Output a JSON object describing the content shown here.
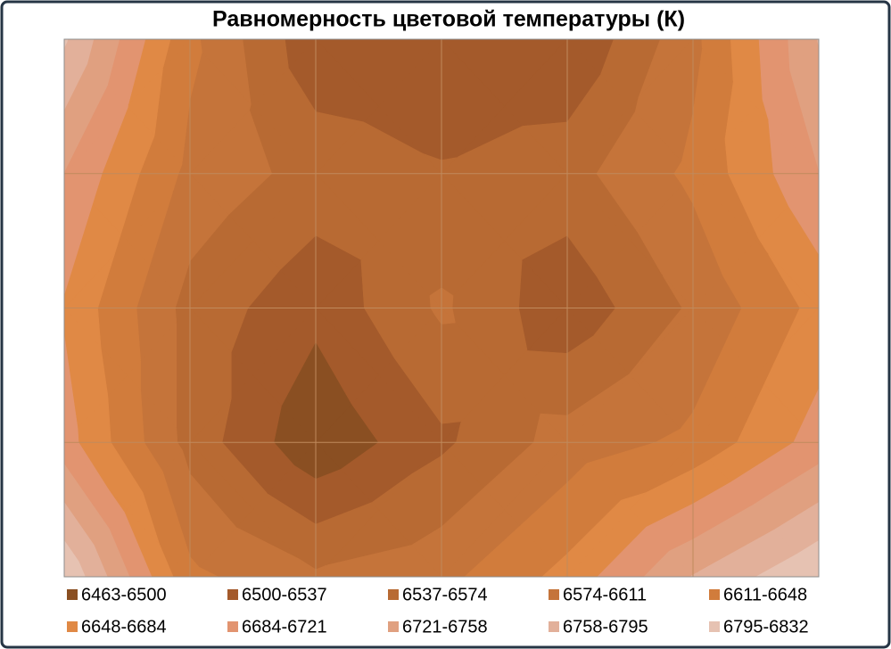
{
  "chart_data": {
    "type": "contour",
    "title": "Равномерность цветовой температуры (К)",
    "z": [
      [
        6800,
        6620,
        6510,
        6510,
        6500,
        6600,
        6760
      ],
      [
        6720,
        6600,
        6560,
        6540,
        6560,
        6620,
        6720
      ],
      [
        6680,
        6560,
        6510,
        6580,
        6510,
        6580,
        6660
      ],
      [
        6700,
        6560,
        6470,
        6530,
        6590,
        6620,
        6700
      ],
      [
        6830,
        6620,
        6580,
        6600,
        6660,
        6760,
        6830
      ]
    ],
    "levels": [
      6463,
      6500,
      6537,
      6574,
      6611,
      6648,
      6684,
      6721,
      6758,
      6795,
      6832
    ],
    "bands": [
      {
        "name": "6463-6500",
        "color": "#8a4f22"
      },
      {
        "name": "6500-6537",
        "color": "#a45a2b"
      },
      {
        "name": "6537-6574",
        "color": "#b86a33"
      },
      {
        "name": "6574-6611",
        "color": "#c5743a"
      },
      {
        "name": "6611-6648",
        "color": "#d17c3c"
      },
      {
        "name": "6648-6684",
        "color": "#e08945"
      },
      {
        "name": "6684-6721",
        "color": "#e29470"
      },
      {
        "name": "6721-6758",
        "color": "#e0a080"
      },
      {
        "name": "6758-6795",
        "color": "#e2b09a"
      },
      {
        "name": "6795-6832",
        "color": "#e6c2b2"
      }
    ],
    "grid": true
  }
}
